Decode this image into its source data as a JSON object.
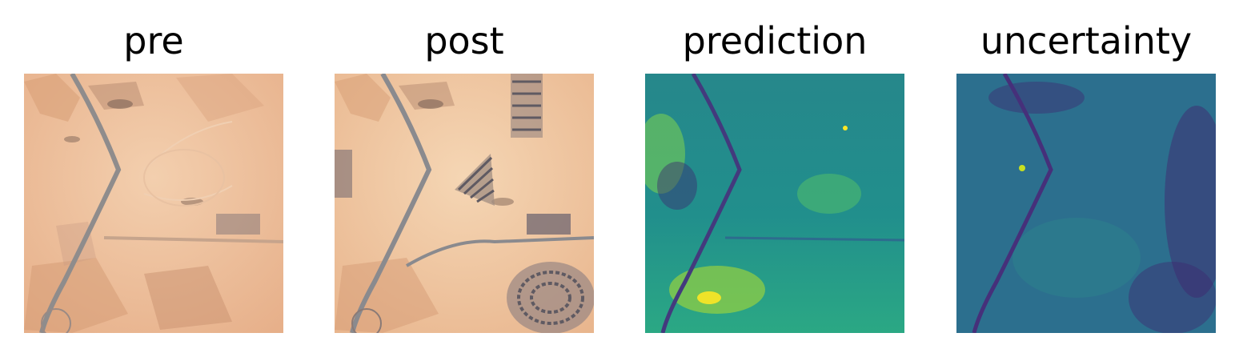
{
  "panels": [
    {
      "title": "pre",
      "colormap": "natural",
      "palette": {
        "sand": "#e9b48e",
        "shadow": "#9c7a66",
        "road": "#8f8c8c",
        "light": "#f3cfae"
      }
    },
    {
      "title": "post",
      "colormap": "natural",
      "palette": {
        "sand": "#ecbc94",
        "shadow": "#9c7a66",
        "road": "#8a8a8e",
        "building": "#5f5a62"
      }
    },
    {
      "title": "prediction",
      "colormap": "viridis",
      "palette": {
        "low": "#3b2a6f",
        "mid": "#21918c",
        "high": "#fde725"
      }
    },
    {
      "title": "uncertainty",
      "colormap": "viridis",
      "palette": {
        "low": "#3f2a70",
        "mid": "#2c6f8e",
        "high": "#c8e020"
      }
    }
  ]
}
